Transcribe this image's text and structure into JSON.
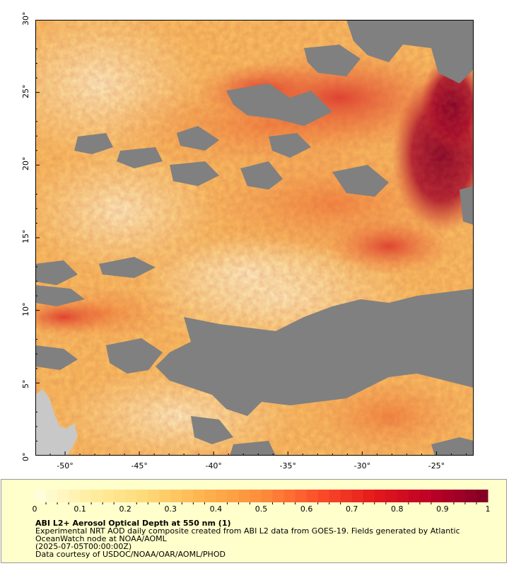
{
  "map": {
    "y_ticks": [
      "0°",
      "5°",
      "10°",
      "15°",
      "20°",
      "25°",
      "30°"
    ],
    "x_ticks": [
      "-50°",
      "-45°",
      "-40°",
      "-35°",
      "-30°",
      "-25°"
    ],
    "lat_range": [
      0,
      30
    ],
    "lon_range": [
      -52,
      -22.5
    ],
    "colors": {
      "no_data": "#808080",
      "land": "#c8c8c8",
      "background": "#ffffff"
    }
  },
  "legend": {
    "title": "ABI L2+ Aerosol Optical Depth at 550 nm (1)",
    "line1": "Experimental NRT AOD daily composite created from ABI L2 data from GOES-19. Fields generated by Atlantic",
    "line2": "OceanWatch node at NOAA/AOML",
    "line3": "(2025-07-05T00:00:00Z)",
    "line4": "Data courtesy of USDOC/NOAA/OAR/AOML/PHOD",
    "colorbar_ticks": [
      "0",
      "0.1",
      "0.2",
      "0.3",
      "0.4",
      "0.5",
      "0.6",
      "0.7",
      "0.8",
      "0.9",
      "1"
    ],
    "colorbar_range": [
      0,
      1
    ],
    "colormap": [
      "#ffffe0",
      "#ffeda0",
      "#fed976",
      "#feb24c",
      "#fd8d3c",
      "#fc4e2a",
      "#e31a1c",
      "#bd0026",
      "#800026"
    ],
    "background": "#ffffcc"
  }
}
